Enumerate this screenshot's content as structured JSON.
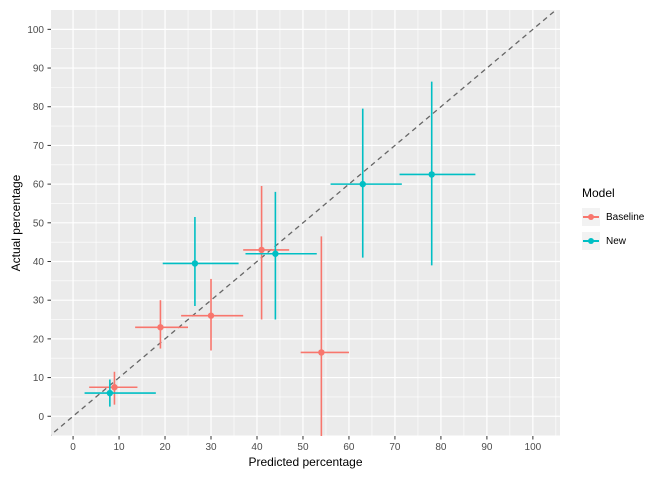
{
  "chart_data": {
    "type": "scatter",
    "title": "",
    "xlabel": "Predicted percentage",
    "ylabel": "Actual percentage",
    "xlim": [
      -4.8,
      105.9
    ],
    "ylim": [
      -5.1,
      105.0
    ],
    "xticks": [
      0,
      10,
      20,
      30,
      40,
      50,
      60,
      70,
      80,
      90,
      100
    ],
    "yticks": [
      0,
      10,
      20,
      30,
      40,
      50,
      60,
      70,
      80,
      90,
      100
    ],
    "grid": true,
    "reference_line": {
      "kind": "identity y=x",
      "style": "dashed",
      "color": "#666666"
    },
    "error_bars": "both x and y, no caps",
    "legend": {
      "title": "Model",
      "position": "right",
      "entries": [
        {
          "label": "Baseline",
          "color": "#F8766D"
        },
        {
          "label": "New",
          "color": "#00BFC4"
        }
      ]
    },
    "series": [
      {
        "name": "Baseline",
        "color": "#F8766D",
        "points": [
          {
            "x": 9,
            "y": 7.5,
            "xmin": 3.5,
            "xmax": 14,
            "ymin": 3,
            "ymax": 11.5
          },
          {
            "x": 19,
            "y": 23,
            "xmin": 13.5,
            "xmax": 25,
            "ymin": 17.5,
            "ymax": 30
          },
          {
            "x": 30,
            "y": 26,
            "xmin": 23.5,
            "xmax": 37,
            "ymin": 17,
            "ymax": 35.5
          },
          {
            "x": 41,
            "y": 43,
            "xmin": 37,
            "xmax": 47,
            "ymin": 25,
            "ymax": 59.5
          },
          {
            "x": 54,
            "y": 16.5,
            "xmin": 49.5,
            "xmax": 60,
            "ymin": -6,
            "ymax": 46.5
          }
        ]
      },
      {
        "name": "New",
        "color": "#00BFC4",
        "points": [
          {
            "x": 8,
            "y": 6,
            "xmin": 2.5,
            "xmax": 18,
            "ymin": 2.5,
            "ymax": 9.5
          },
          {
            "x": 26.5,
            "y": 39.5,
            "xmin": 19.5,
            "xmax": 36,
            "ymin": 28.5,
            "ymax": 51.5
          },
          {
            "x": 44,
            "y": 42,
            "xmin": 37.5,
            "xmax": 53,
            "ymin": 25,
            "ymax": 58
          },
          {
            "x": 63,
            "y": 60,
            "xmin": 56,
            "xmax": 71.5,
            "ymin": 41,
            "ymax": 79.5
          },
          {
            "x": 78,
            "y": 62.5,
            "xmin": 71,
            "xmax": 87.5,
            "ymin": 39,
            "ymax": 86.5
          }
        ]
      }
    ]
  },
  "theme": {
    "panel_bg": "#EBEBEB",
    "grid_major": "#FFFFFF",
    "grid_minor": "#F5F5F5",
    "tick_mark_color": "#333333",
    "tick_label_color": "#4D4D4D",
    "axis_title_color": "#000000",
    "background": "#FFFFFF",
    "legend_key_bg": "#F2F2F2"
  }
}
